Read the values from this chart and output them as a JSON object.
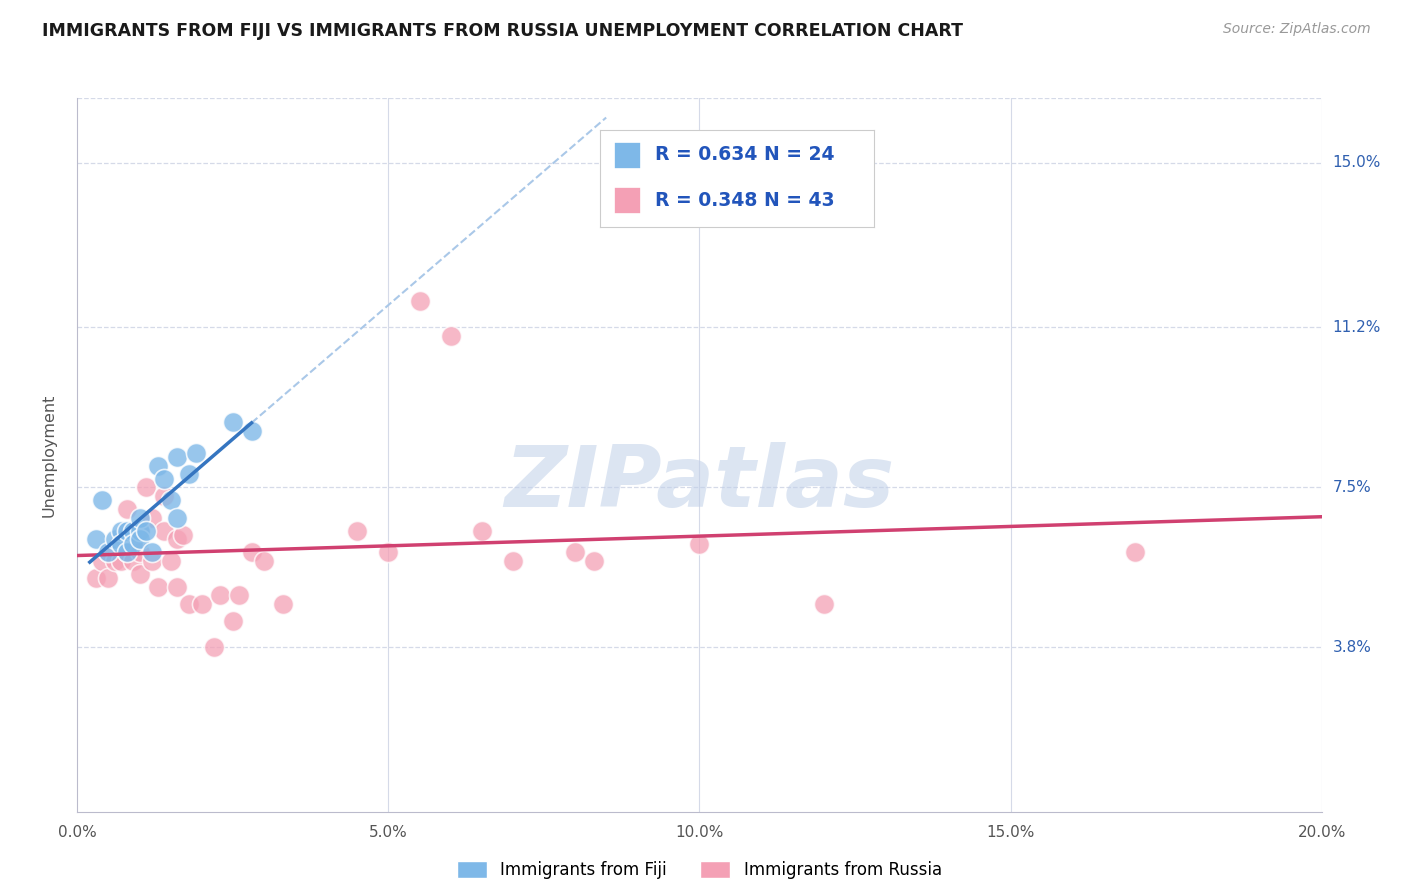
{
  "title": "IMMIGRANTS FROM FIJI VS IMMIGRANTS FROM RUSSIA UNEMPLOYMENT CORRELATION CHART",
  "source": "Source: ZipAtlas.com",
  "ylabel": "Unemployment",
  "xlim": [
    0.0,
    0.2
  ],
  "ylim": [
    0.0,
    0.165
  ],
  "xtick_positions": [
    0.0,
    0.05,
    0.1,
    0.15,
    0.2
  ],
  "xticklabels": [
    "0.0%",
    "5.0%",
    "10.0%",
    "15.0%",
    "20.0%"
  ],
  "ytick_positions": [
    0.038,
    0.075,
    0.112,
    0.15
  ],
  "ytick_labels": [
    "3.8%",
    "7.5%",
    "11.2%",
    "15.0%"
  ],
  "watermark": "ZIPatlas",
  "fiji_R": "0.634",
  "fiji_N": "24",
  "russia_R": "0.348",
  "russia_N": "43",
  "fiji_color": "#7eb8e8",
  "russia_color": "#f4a0b5",
  "fiji_line_color": "#3575c0",
  "russia_line_color": "#d04070",
  "fiji_dash_color": "#aac8e8",
  "background_color": "#ffffff",
  "grid_color": "#d5dae8",
  "fiji_points": [
    [
      0.003,
      0.063
    ],
    [
      0.004,
      0.072
    ],
    [
      0.005,
      0.06
    ],
    [
      0.006,
      0.063
    ],
    [
      0.007,
      0.065
    ],
    [
      0.007,
      0.062
    ],
    [
      0.008,
      0.065
    ],
    [
      0.008,
      0.06
    ],
    [
      0.009,
      0.065
    ],
    [
      0.009,
      0.062
    ],
    [
      0.01,
      0.065
    ],
    [
      0.01,
      0.068
    ],
    [
      0.01,
      0.063
    ],
    [
      0.011,
      0.065
    ],
    [
      0.012,
      0.06
    ],
    [
      0.013,
      0.08
    ],
    [
      0.014,
      0.077
    ],
    [
      0.015,
      0.072
    ],
    [
      0.016,
      0.068
    ],
    [
      0.016,
      0.082
    ],
    [
      0.018,
      0.078
    ],
    [
      0.019,
      0.083
    ],
    [
      0.025,
      0.09
    ],
    [
      0.028,
      0.088
    ]
  ],
  "russia_points": [
    [
      0.003,
      0.054
    ],
    [
      0.004,
      0.058
    ],
    [
      0.005,
      0.06
    ],
    [
      0.005,
      0.054
    ],
    [
      0.006,
      0.058
    ],
    [
      0.007,
      0.062
    ],
    [
      0.007,
      0.058
    ],
    [
      0.008,
      0.06
    ],
    [
      0.008,
      0.07
    ],
    [
      0.009,
      0.058
    ],
    [
      0.01,
      0.065
    ],
    [
      0.01,
      0.06
    ],
    [
      0.01,
      0.055
    ],
    [
      0.011,
      0.075
    ],
    [
      0.012,
      0.068
    ],
    [
      0.012,
      0.058
    ],
    [
      0.013,
      0.052
    ],
    [
      0.014,
      0.073
    ],
    [
      0.014,
      0.065
    ],
    [
      0.015,
      0.058
    ],
    [
      0.016,
      0.063
    ],
    [
      0.016,
      0.052
    ],
    [
      0.017,
      0.064
    ],
    [
      0.018,
      0.048
    ],
    [
      0.02,
      0.048
    ],
    [
      0.022,
      0.038
    ],
    [
      0.023,
      0.05
    ],
    [
      0.025,
      0.044
    ],
    [
      0.026,
      0.05
    ],
    [
      0.028,
      0.06
    ],
    [
      0.03,
      0.058
    ],
    [
      0.033,
      0.048
    ],
    [
      0.045,
      0.065
    ],
    [
      0.05,
      0.06
    ],
    [
      0.055,
      0.118
    ],
    [
      0.06,
      0.11
    ],
    [
      0.065,
      0.065
    ],
    [
      0.07,
      0.058
    ],
    [
      0.08,
      0.06
    ],
    [
      0.083,
      0.058
    ],
    [
      0.1,
      0.062
    ],
    [
      0.12,
      0.048
    ],
    [
      0.17,
      0.06
    ]
  ],
  "fiji_line_x_start": 0.002,
  "fiji_line_x_solid_end": 0.028,
  "fiji_line_x_dash_end": 0.085,
  "russia_line_x_start": 0.0,
  "russia_line_x_end": 0.2
}
